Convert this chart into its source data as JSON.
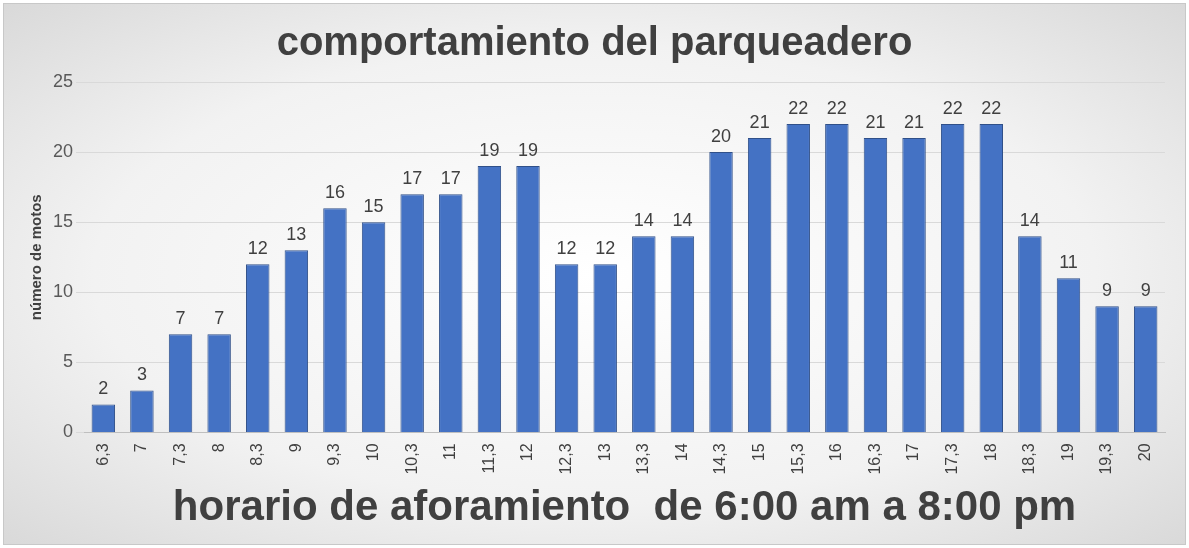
{
  "chart_data": {
    "type": "bar",
    "title": "comportamiento del parqueadero",
    "xlabel": "horario de aforamiento  de 6:00 am a 8:00 pm",
    "ylabel": "número de motos",
    "categories": [
      "6,3",
      "7",
      "7,3",
      "8",
      "8,3",
      "9",
      "9,3",
      "10",
      "10,3",
      "11",
      "11,3",
      "12",
      "12,3",
      "13",
      "13,3",
      "14",
      "14,3",
      "15",
      "15,3",
      "16",
      "16,3",
      "17",
      "17,3",
      "18",
      "18,3",
      "19",
      "19,3",
      "20"
    ],
    "values": [
      2,
      3,
      7,
      7,
      12,
      13,
      16,
      15,
      17,
      17,
      19,
      19,
      12,
      12,
      14,
      14,
      20,
      21,
      22,
      22,
      21,
      21,
      22,
      22,
      14,
      11,
      9,
      9
    ],
    "color": "#4472c4",
    "ylim": [
      0,
      25
    ],
    "yticks": [
      0,
      5,
      10,
      15,
      20,
      25
    ],
    "grid": "y",
    "data_labels": true
  }
}
